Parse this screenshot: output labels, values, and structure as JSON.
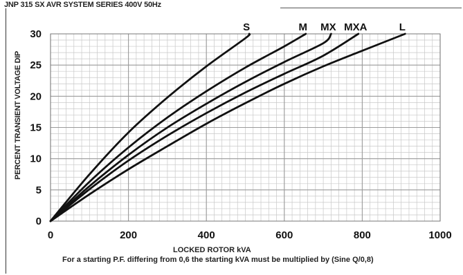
{
  "chart_data": {
    "type": "line",
    "title": "JNP 315 SX AVR SYSTEM SERIES 400V 50Hz",
    "xlabel": "LOCKED ROTOR kVA",
    "ylabel": "PERCENT TRANSIENT VOLTAGE DIP",
    "note": "For a starting P.F. differing from 0,6 the starting kVA must be multiplied by (Sine Q/0,8)",
    "xlim": [
      0,
      1000
    ],
    "ylim": [
      0,
      30
    ],
    "xticks": [
      "0",
      "200",
      "400",
      "600",
      "800",
      "1000"
    ],
    "yticks": [
      "0",
      "5",
      "10",
      "15",
      "20",
      "25",
      "30"
    ],
    "grid": true,
    "legend": "none",
    "series": [
      {
        "name": "S",
        "x": [
          0,
          100,
          200,
          300,
          400,
          500,
          510
        ],
        "y": [
          0,
          7.5,
          14.2,
          19.8,
          24.8,
          29.3,
          30
        ]
      },
      {
        "name": "M",
        "x": [
          0,
          100,
          200,
          300,
          400,
          500,
          600,
          655
        ],
        "y": [
          0,
          6.3,
          11.8,
          16.6,
          20.8,
          24.6,
          28.0,
          30
        ]
      },
      {
        "name": "MX",
        "x": [
          0,
          100,
          200,
          300,
          400,
          500,
          600,
          700,
          720
        ],
        "y": [
          0,
          5.6,
          10.6,
          15.0,
          18.8,
          22.3,
          25.5,
          28.5,
          30
        ]
      },
      {
        "name": "MXA",
        "x": [
          0,
          100,
          200,
          300,
          400,
          500,
          600,
          700,
          790
        ],
        "y": [
          0,
          5.1,
          9.7,
          13.7,
          17.3,
          20.6,
          23.6,
          26.5,
          30
        ]
      },
      {
        "name": "L",
        "x": [
          0,
          100,
          200,
          300,
          400,
          500,
          600,
          700,
          800,
          910
        ],
        "y": [
          0,
          4.3,
          8.3,
          12.0,
          15.6,
          18.9,
          22.0,
          24.8,
          27.3,
          30
        ]
      }
    ]
  }
}
